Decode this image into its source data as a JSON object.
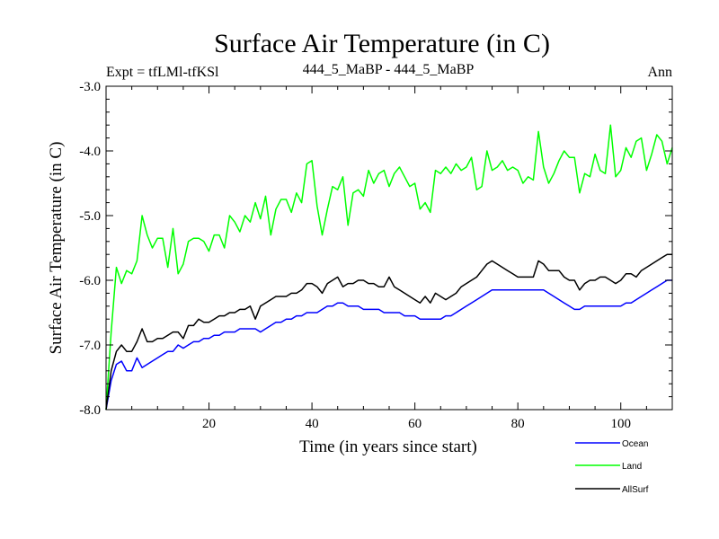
{
  "chart_data": {
    "type": "line",
    "title": "Surface Air Temperature (in C)",
    "subtitle_left": "Expt = tfLMl-tfKSl",
    "subtitle_center": "444_5_MaBP - 444_5_MaBP",
    "subtitle_right": "Ann",
    "xlabel": "Time (in years since start)",
    "ylabel": "Surface Air Temperature (in C)",
    "xlim": [
      0,
      110
    ],
    "ylim": [
      -8.0,
      -3.0
    ],
    "x_ticks": [
      20,
      40,
      60,
      80,
      100
    ],
    "y_ticks": [
      -8.0,
      -7.0,
      -6.0,
      -5.0,
      -4.0,
      -3.0
    ],
    "y_tick_labels": [
      "-8.0",
      "-7.0",
      "-6.0",
      "-5.0",
      "-4.0",
      "-3.0"
    ],
    "x_start": 0,
    "x_step": 1,
    "series": [
      {
        "name": "Ocean",
        "color": "#0000ff",
        "values": [
          -8.0,
          -7.55,
          -7.3,
          -7.25,
          -7.4,
          -7.4,
          -7.2,
          -7.35,
          -7.3,
          -7.25,
          -7.2,
          -7.15,
          -7.1,
          -7.1,
          -7.0,
          -7.05,
          -7.0,
          -6.95,
          -6.95,
          -6.9,
          -6.9,
          -6.85,
          -6.85,
          -6.8,
          -6.8,
          -6.8,
          -6.75,
          -6.75,
          -6.75,
          -6.75,
          -6.8,
          -6.75,
          -6.7,
          -6.65,
          -6.65,
          -6.6,
          -6.6,
          -6.55,
          -6.55,
          -6.5,
          -6.5,
          -6.5,
          -6.45,
          -6.4,
          -6.4,
          -6.35,
          -6.35,
          -6.4,
          -6.4,
          -6.4,
          -6.45,
          -6.45,
          -6.45,
          -6.45,
          -6.5,
          -6.5,
          -6.5,
          -6.5,
          -6.55,
          -6.55,
          -6.55,
          -6.6,
          -6.6,
          -6.6,
          -6.6,
          -6.6,
          -6.55,
          -6.55,
          -6.5,
          -6.45,
          -6.4,
          -6.35,
          -6.3,
          -6.25,
          -6.2,
          -6.15,
          -6.15,
          -6.15,
          -6.15,
          -6.15,
          -6.15,
          -6.15,
          -6.15,
          -6.15,
          -6.15,
          -6.15,
          -6.2,
          -6.25,
          -6.3,
          -6.35,
          -6.4,
          -6.45,
          -6.45,
          -6.4,
          -6.4,
          -6.4,
          -6.4,
          -6.4,
          -6.4,
          -6.4,
          -6.4,
          -6.35,
          -6.35,
          -6.3,
          -6.25,
          -6.2,
          -6.15,
          -6.1,
          -6.05,
          -6.0,
          -6.0
        ]
      },
      {
        "name": "Land",
        "color": "#00ff00",
        "values": [
          -8.0,
          -6.8,
          -5.8,
          -6.05,
          -5.85,
          -5.9,
          -5.7,
          -5.0,
          -5.3,
          -5.5,
          -5.35,
          -5.35,
          -5.8,
          -5.2,
          -5.9,
          -5.75,
          -5.4,
          -5.35,
          -5.35,
          -5.4,
          -5.55,
          -5.3,
          -5.3,
          -5.5,
          -5.0,
          -5.1,
          -5.25,
          -5.0,
          -5.1,
          -4.8,
          -5.05,
          -4.7,
          -5.3,
          -4.9,
          -4.75,
          -4.75,
          -4.95,
          -4.65,
          -4.8,
          -4.2,
          -4.15,
          -4.85,
          -5.3,
          -4.9,
          -4.55,
          -4.6,
          -4.4,
          -5.15,
          -4.65,
          -4.6,
          -4.7,
          -4.3,
          -4.5,
          -4.35,
          -4.3,
          -4.55,
          -4.35,
          -4.25,
          -4.4,
          -4.55,
          -4.5,
          -4.9,
          -4.8,
          -4.95,
          -4.3,
          -4.35,
          -4.25,
          -4.35,
          -4.2,
          -4.3,
          -4.25,
          -4.1,
          -4.6,
          -4.55,
          -4.0,
          -4.3,
          -4.25,
          -4.15,
          -4.3,
          -4.25,
          -4.3,
          -4.5,
          -4.4,
          -4.45,
          -3.7,
          -4.25,
          -4.5,
          -4.35,
          -4.15,
          -4.0,
          -4.1,
          -4.1,
          -4.65,
          -4.35,
          -4.4,
          -4.05,
          -4.3,
          -4.35,
          -3.6,
          -4.4,
          -4.3,
          -3.95,
          -4.1,
          -3.85,
          -3.8,
          -4.3,
          -4.05,
          -3.75,
          -3.85,
          -4.2,
          -3.95
        ]
      },
      {
        "name": "AllSurf",
        "color": "#000000",
        "values": [
          -8.0,
          -7.4,
          -7.1,
          -7.0,
          -7.1,
          -7.1,
          -6.95,
          -6.75,
          -6.95,
          -6.95,
          -6.9,
          -6.9,
          -6.85,
          -6.8,
          -6.8,
          -6.9,
          -6.7,
          -6.7,
          -6.6,
          -6.65,
          -6.65,
          -6.6,
          -6.55,
          -6.55,
          -6.5,
          -6.5,
          -6.45,
          -6.45,
          -6.4,
          -6.6,
          -6.4,
          -6.35,
          -6.3,
          -6.25,
          -6.25,
          -6.25,
          -6.2,
          -6.2,
          -6.15,
          -6.05,
          -6.05,
          -6.1,
          -6.2,
          -6.05,
          -6.0,
          -5.95,
          -6.1,
          -6.05,
          -6.05,
          -6.0,
          -6.0,
          -6.05,
          -6.05,
          -6.1,
          -6.1,
          -5.95,
          -6.1,
          -6.15,
          -6.2,
          -6.25,
          -6.3,
          -6.35,
          -6.25,
          -6.35,
          -6.2,
          -6.25,
          -6.3,
          -6.25,
          -6.2,
          -6.1,
          -6.05,
          -6.0,
          -5.95,
          -5.85,
          -5.75,
          -5.7,
          -5.75,
          -5.8,
          -5.85,
          -5.9,
          -5.95,
          -5.95,
          -5.95,
          -5.95,
          -5.7,
          -5.75,
          -5.85,
          -5.85,
          -5.85,
          -5.95,
          -6.0,
          -6.0,
          -6.15,
          -6.05,
          -6.0,
          -6.0,
          -5.95,
          -5.95,
          -6.0,
          -6.05,
          -6.0,
          -5.9,
          -5.9,
          -5.95,
          -5.85,
          -5.8,
          -5.75,
          -5.7,
          -5.65,
          -5.6,
          -5.6
        ]
      }
    ]
  },
  "legend_items": [
    {
      "label": "Ocean",
      "color": "#0000ff"
    },
    {
      "label": "Land",
      "color": "#00ff00"
    },
    {
      "label": "AllSurf",
      "color": "#000000"
    }
  ]
}
